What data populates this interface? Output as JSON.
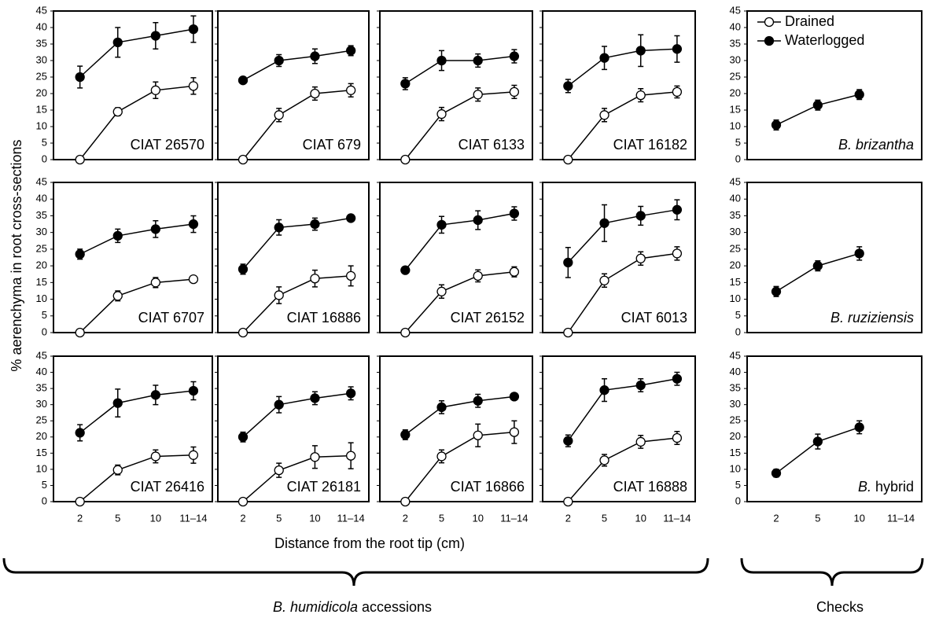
{
  "y_label": "% aerenchyma in root cross-sections",
  "x_label": "Distance from the root tip (cm)",
  "groups": [
    [
      "B. humidicola",
      "accessions"
    ],
    [
      "Checks"
    ]
  ],
  "chart_data": [
    {
      "type": "line",
      "label": "CIAT 26570",
      "ylim": [
        0,
        45
      ],
      "yticks": [
        0,
        5,
        10,
        15,
        20,
        25,
        30,
        35,
        40,
        45
      ],
      "series": [
        {
          "color": "#000000",
          "values": [
            25,
            35.5,
            37.5,
            39.5
          ],
          "errors": [
            3.3,
            4.5,
            4,
            4
          ]
        },
        {
          "color": "#ffffff",
          "values": [
            0,
            14.5,
            21,
            22.3
          ],
          "errors": [
            0,
            1.2,
            2.5,
            2.5
          ]
        }
      ]
    },
    {
      "type": "line",
      "label": "CIAT 679",
      "ylim": [
        0,
        45
      ],
      "yticks": [
        0,
        5,
        10,
        15,
        20,
        25,
        30,
        35,
        40,
        45
      ],
      "series": [
        {
          "color": "#000000",
          "values": [
            24,
            30,
            31.3,
            33
          ],
          "errors": [
            0.8,
            1.8,
            2.2,
            1.5
          ]
        },
        {
          "color": "#ffffff",
          "values": [
            0,
            13.5,
            20,
            21
          ],
          "errors": [
            0,
            2,
            2,
            2
          ]
        }
      ]
    },
    {
      "type": "line",
      "label": "CIAT 6133",
      "ylim": [
        0,
        45
      ],
      "yticks": [
        0,
        5,
        10,
        15,
        20,
        25,
        30,
        35,
        40,
        45
      ],
      "series": [
        {
          "color": "#000000",
          "values": [
            23,
            30,
            30,
            31.3
          ],
          "errors": [
            1.8,
            3,
            2,
            2
          ]
        },
        {
          "color": "#ffffff",
          "values": [
            0,
            13.8,
            19.7,
            20.5
          ],
          "errors": [
            0,
            2,
            2,
            2
          ]
        }
      ]
    },
    {
      "type": "line",
      "label": "CIAT 16182",
      "ylim": [
        0,
        45
      ],
      "yticks": [
        0,
        5,
        10,
        15,
        20,
        25,
        30,
        35,
        40,
        45
      ],
      "series": [
        {
          "color": "#000000",
          "values": [
            22.3,
            30.8,
            33,
            33.5
          ],
          "errors": [
            2,
            3.5,
            4.8,
            4
          ]
        },
        {
          "color": "#ffffff",
          "values": [
            0,
            13.5,
            19.5,
            20.5
          ],
          "errors": [
            0,
            2,
            2,
            1.8
          ]
        }
      ]
    },
    {
      "type": "line",
      "label": [
        "B. brizantha"
      ],
      "ylim": [
        0,
        45
      ],
      "yticks": [
        0,
        5,
        10,
        15,
        20,
        25,
        30,
        35,
        40,
        45
      ],
      "series": [
        {
          "name": "Drained",
          "color": "#ffffff",
          "values": [
            null,
            null,
            null,
            null
          ]
        },
        {
          "name": "Waterlogged",
          "color": "#000000",
          "values": [
            10.5,
            16.5,
            19.7,
            null
          ],
          "errors": [
            1.5,
            1.5,
            1.5,
            null
          ]
        }
      ]
    },
    {
      "type": "line",
      "label": "CIAT 6707",
      "ylim": [
        0,
        45
      ],
      "yticks": [
        0,
        5,
        10,
        15,
        20,
        25,
        30,
        35,
        40,
        45
      ],
      "series": [
        {
          "color": "#000000",
          "values": [
            23.5,
            29,
            31,
            32.5
          ],
          "errors": [
            1.5,
            2,
            2.5,
            2.5
          ]
        },
        {
          "color": "#ffffff",
          "values": [
            0,
            11,
            15,
            16
          ],
          "errors": [
            0,
            1.5,
            1.5,
            0.8
          ]
        }
      ]
    },
    {
      "type": "line",
      "label": "CIAT 16886",
      "ylim": [
        0,
        45
      ],
      "yticks": [
        0,
        5,
        10,
        15,
        20,
        25,
        30,
        35,
        40,
        45
      ],
      "series": [
        {
          "color": "#000000",
          "values": [
            19,
            31.5,
            32.5,
            34.3
          ],
          "errors": [
            1.5,
            2.3,
            1.8,
            0.5
          ]
        },
        {
          "color": "#ffffff",
          "values": [
            0,
            11.2,
            16.2,
            17
          ],
          "errors": [
            0,
            2.5,
            2.5,
            3
          ]
        }
      ]
    },
    {
      "type": "line",
      "label": "CIAT 26152",
      "ylim": [
        0,
        45
      ],
      "yticks": [
        0,
        5,
        10,
        15,
        20,
        25,
        30,
        35,
        40,
        45
      ],
      "series": [
        {
          "color": "#000000",
          "values": [
            18.7,
            32.3,
            33.7,
            35.7
          ],
          "errors": [
            1,
            2.5,
            2.8,
            2
          ]
        },
        {
          "color": "#ffffff",
          "values": [
            0,
            12.3,
            17,
            18.2
          ],
          "errors": [
            0,
            2,
            1.8,
            1.5
          ]
        }
      ]
    },
    {
      "type": "line",
      "label": "CIAT 6013",
      "ylim": [
        0,
        45
      ],
      "yticks": [
        0,
        5,
        10,
        15,
        20,
        25,
        30,
        35,
        40,
        45
      ],
      "series": [
        {
          "color": "#000000",
          "values": [
            21,
            32.8,
            35,
            36.8
          ],
          "errors": [
            4.5,
            5.5,
            2.8,
            3
          ]
        },
        {
          "color": "#ffffff",
          "values": [
            0,
            15.6,
            22.2,
            23.7
          ],
          "errors": [
            0,
            2,
            2,
            2
          ]
        }
      ]
    },
    {
      "type": "line",
      "label": [
        "B. ruziziensis"
      ],
      "ylim": [
        0,
        45
      ],
      "yticks": [
        0,
        5,
        10,
        15,
        20,
        25,
        30,
        35,
        40,
        45
      ],
      "series": [
        {
          "color": "#000000",
          "values": [
            12.3,
            20,
            23.7,
            null
          ],
          "errors": [
            1.5,
            1.5,
            2,
            null
          ]
        }
      ]
    },
    {
      "type": "line",
      "label": "CIAT 26416",
      "ylim": [
        0,
        45
      ],
      "yticks": [
        0,
        5,
        10,
        15,
        20,
        25,
        30,
        35,
        40,
        45
      ],
      "categories": [
        "2",
        "5",
        "10",
        "11–14"
      ],
      "series": [
        {
          "color": "#000000",
          "values": [
            21.3,
            30.5,
            33,
            34.3
          ],
          "errors": [
            2.5,
            4.3,
            3,
            2.8
          ]
        },
        {
          "color": "#ffffff",
          "values": [
            0,
            9.8,
            14,
            14.4
          ],
          "errors": [
            0,
            1.5,
            2,
            2.5
          ]
        }
      ]
    },
    {
      "type": "line",
      "label": "CIAT 26181",
      "ylim": [
        0,
        45
      ],
      "yticks": [
        0,
        5,
        10,
        15,
        20,
        25,
        30,
        35,
        40,
        45
      ],
      "categories": [
        "2",
        "5",
        "10",
        "11–14"
      ],
      "series": [
        {
          "color": "#000000",
          "values": [
            20,
            30,
            32,
            33.5
          ],
          "errors": [
            1.5,
            2.5,
            2,
            2
          ]
        },
        {
          "color": "#ffffff",
          "values": [
            0,
            9.7,
            13.8,
            14.2
          ],
          "errors": [
            0,
            2.2,
            3.5,
            4
          ]
        }
      ]
    },
    {
      "type": "line",
      "label": "CIAT 16866",
      "ylim": [
        0,
        45
      ],
      "yticks": [
        0,
        5,
        10,
        15,
        20,
        25,
        30,
        35,
        40,
        45
      ],
      "categories": [
        "2",
        "5",
        "10",
        "11–14"
      ],
      "series": [
        {
          "color": "#000000",
          "values": [
            20.7,
            29.2,
            31.2,
            32.5
          ],
          "errors": [
            1.5,
            2,
            2,
            0.5
          ]
        },
        {
          "color": "#ffffff",
          "values": [
            0,
            14,
            20.5,
            21.5
          ],
          "errors": [
            0,
            2,
            3.5,
            3.5
          ]
        }
      ]
    },
    {
      "type": "line",
      "label": "CIAT 16888",
      "ylim": [
        0,
        45
      ],
      "yticks": [
        0,
        5,
        10,
        15,
        20,
        25,
        30,
        35,
        40,
        45
      ],
      "categories": [
        "2",
        "5",
        "10",
        "11–14"
      ],
      "series": [
        {
          "color": "#000000",
          "values": [
            18.8,
            34.5,
            36,
            38
          ],
          "errors": [
            1.8,
            3.5,
            2,
            2
          ]
        },
        {
          "color": "#ffffff",
          "values": [
            0,
            12.8,
            18.5,
            19.7
          ],
          "errors": [
            0,
            1.8,
            2,
            2
          ]
        }
      ]
    },
    {
      "type": "line",
      "label": [
        "B.",
        "hybrid"
      ],
      "ylim": [
        0,
        45
      ],
      "yticks": [
        0,
        5,
        10,
        15,
        20,
        25,
        30,
        35,
        40,
        45
      ],
      "categories": [
        "2",
        "5",
        "10",
        "11–14"
      ],
      "series": [
        {
          "color": "#000000",
          "values": [
            8.8,
            18.6,
            23,
            null
          ],
          "errors": [
            1.2,
            2.3,
            2,
            null
          ]
        }
      ]
    }
  ]
}
